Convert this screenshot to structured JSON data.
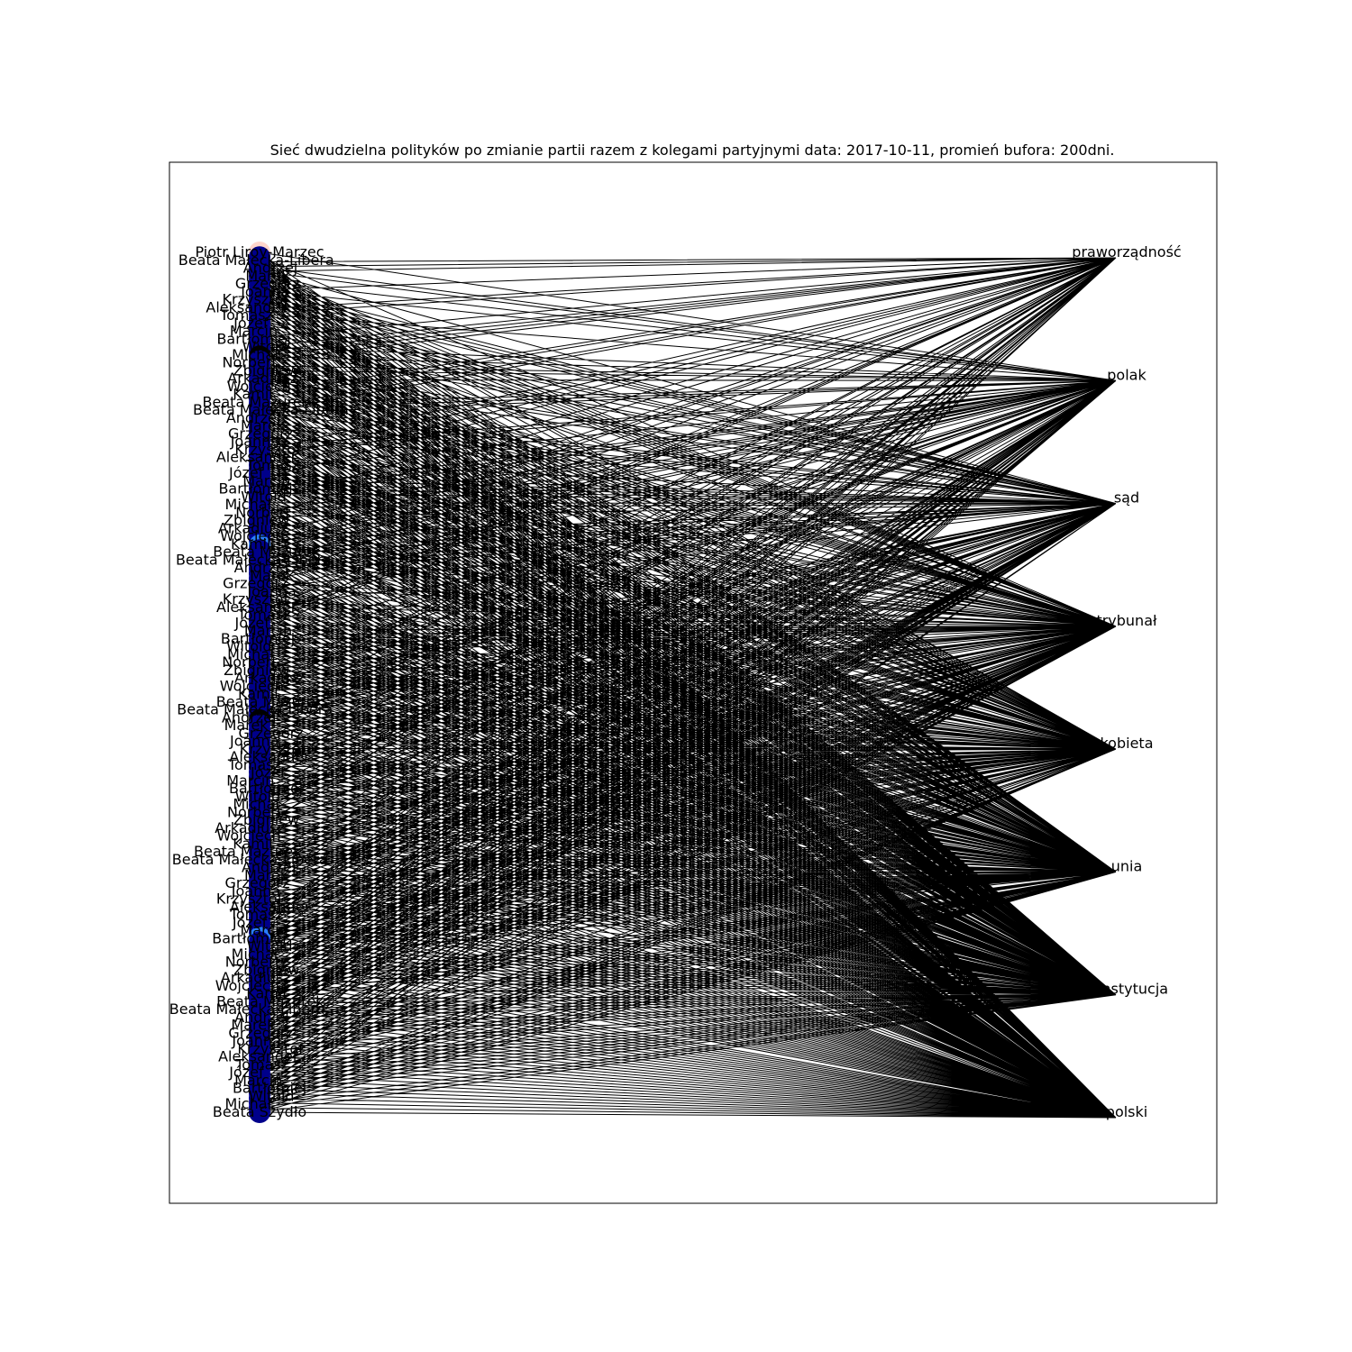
{
  "title": "Sieć dwudzielna polityków  po zmianie partii razem z kolegami partyjnymi data: 2017-10-11, promień bufora: 200dni.",
  "graph": {
    "type": "bipartite-network",
    "left_nodes": {
      "count": 183,
      "color": "#00008b",
      "highlight_colors": [
        "#ffd6cc",
        "#000000",
        "#2a7fff"
      ],
      "visible_labels": [
        "Piotr Liroy-Marzec",
        "Beata Mazurek",
        "Beata Małecka-Libera",
        "Andrzej",
        "Marek",
        "Grzegorz",
        "Joanna",
        "Krzysztof",
        "Aleksander",
        "Tomasz",
        "Józef",
        "Marcin",
        "Bartłomiej",
        "Witold",
        "Michał",
        "Norbert",
        "Zbigniew",
        "Arkadiusz",
        "Wojciech",
        "Kamil",
        "Beata Szydło"
      ]
    },
    "right_nodes": [
      {
        "label": "praworządność"
      },
      {
        "label": "polak"
      },
      {
        "label": "sąd"
      },
      {
        "label": "trybunał"
      },
      {
        "label": "kobieta"
      },
      {
        "label": "unia"
      },
      {
        "label": "konstytucja"
      },
      {
        "label": "polski"
      }
    ],
    "edge_color": "#000000"
  }
}
